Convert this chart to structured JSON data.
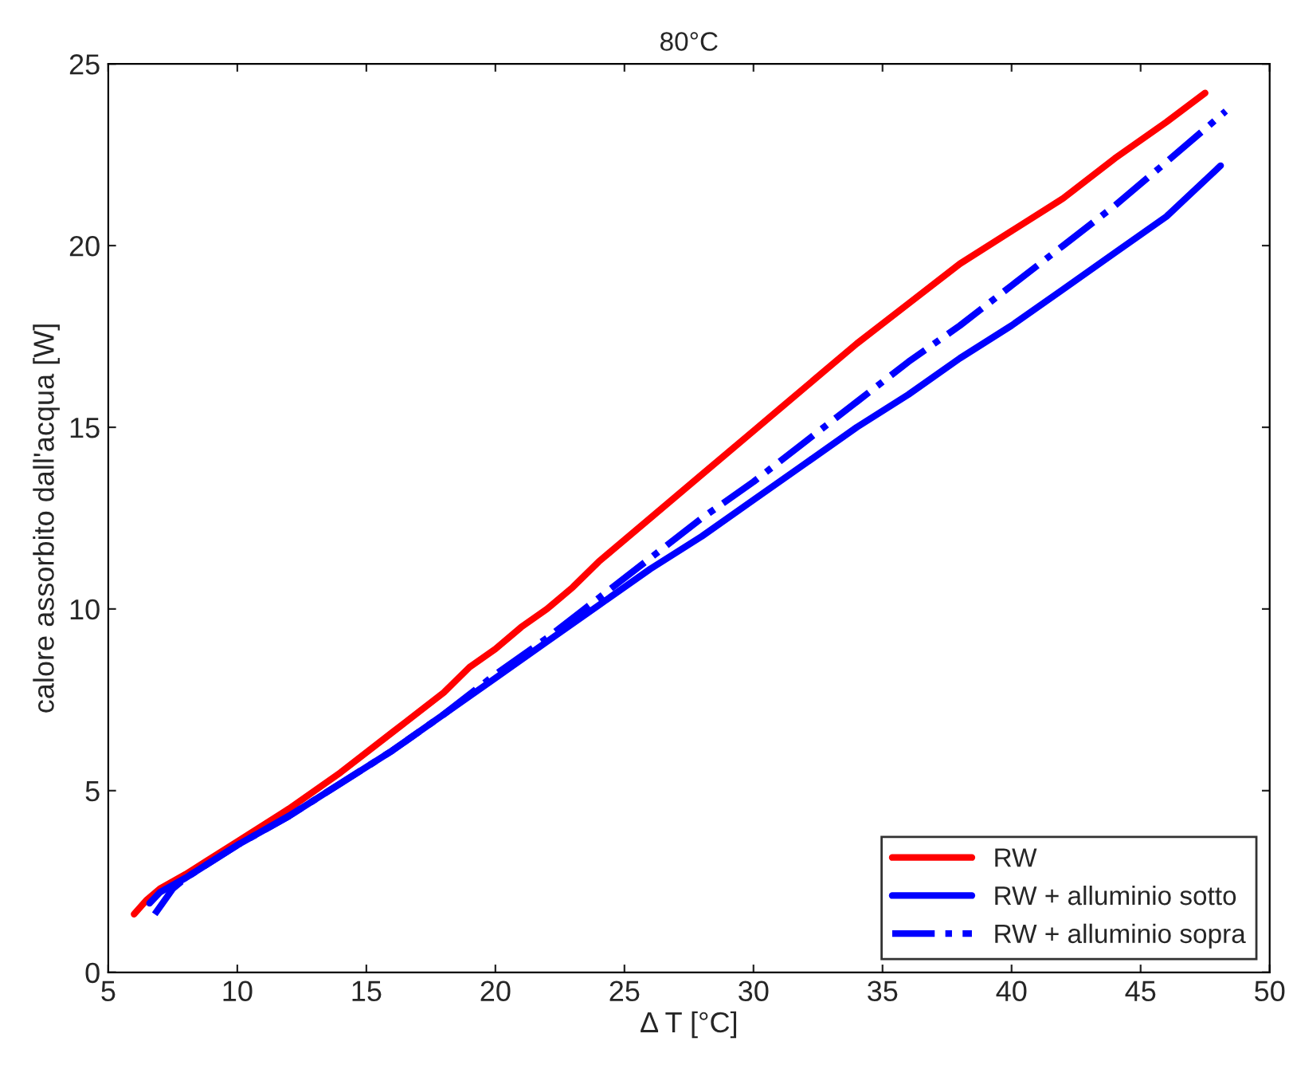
{
  "chart_data": {
    "type": "line",
    "title": "80°C",
    "xlabel": "Δ T [°C]",
    "ylabel": "calore assorbito dall'acqua [W]",
    "xlim": [
      5,
      50
    ],
    "xticks": [
      5,
      10,
      15,
      20,
      25,
      30,
      35,
      40,
      45,
      50
    ],
    "ylim": [
      0,
      25
    ],
    "yticks": [
      0,
      5,
      10,
      15,
      20,
      25
    ],
    "grid": false,
    "legend": "bottom right",
    "series": [
      {
        "name": "RW",
        "color": "#ff0000",
        "line_style": "solid",
        "x": [
          6,
          6.5,
          7,
          8,
          10,
          12,
          14,
          16,
          18,
          19,
          20,
          21,
          22,
          23,
          24,
          26,
          28,
          30,
          32,
          34,
          36,
          38,
          40,
          42,
          44,
          46,
          47.5
        ],
        "values": [
          1.6,
          2.0,
          2.3,
          2.7,
          3.6,
          4.5,
          5.5,
          6.6,
          7.7,
          8.4,
          8.9,
          9.5,
          10.0,
          10.6,
          11.3,
          12.5,
          13.7,
          14.9,
          16.1,
          17.3,
          18.4,
          19.5,
          20.4,
          21.3,
          22.4,
          23.4,
          24.2
        ]
      },
      {
        "name": "RW + alluminio sotto",
        "color": "#0000ff",
        "line_style": "solid",
        "x": [
          6.6,
          7,
          8,
          10,
          12,
          14,
          16,
          18,
          20,
          22,
          24,
          26,
          28,
          30,
          32,
          34,
          36,
          38,
          40,
          42,
          44,
          46,
          48.1
        ],
        "values": [
          1.9,
          2.2,
          2.6,
          3.5,
          4.3,
          5.2,
          6.1,
          7.1,
          8.1,
          9.1,
          10.1,
          11.1,
          12.0,
          13.0,
          14.0,
          15.0,
          15.9,
          16.9,
          17.8,
          18.8,
          19.8,
          20.8,
          22.2
        ]
      },
      {
        "name": "RW + alluminio sopra",
        "color": "#0000ff",
        "line_style": "dashdot",
        "x": [
          6.8,
          7.2,
          7.5,
          8,
          10,
          12,
          14,
          16,
          18,
          20,
          22,
          24,
          26,
          28,
          30,
          32,
          34,
          36,
          38,
          40,
          42,
          44,
          46,
          48.3
        ],
        "values": [
          1.6,
          2.0,
          2.3,
          2.6,
          3.5,
          4.3,
          5.2,
          6.1,
          7.1,
          8.2,
          9.2,
          10.3,
          11.4,
          12.5,
          13.5,
          14.6,
          15.7,
          16.8,
          17.8,
          18.9,
          20.0,
          21.1,
          22.3,
          23.7
        ]
      }
    ]
  }
}
